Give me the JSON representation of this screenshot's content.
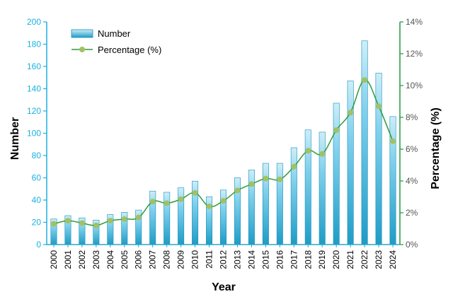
{
  "chart_data": {
    "type": "bar+line",
    "title": "",
    "xlabel": "Year",
    "ylabel_left": "Number",
    "ylabel_right": "Percentage (%)",
    "ylim_left": [
      0,
      200
    ],
    "ylim_right": [
      0,
      14
    ],
    "yticks_left": [
      "0",
      "20",
      "40",
      "60",
      "80",
      "100",
      "120",
      "140",
      "160",
      "180",
      "200"
    ],
    "yticks_right": [
      "0%",
      "2%",
      "4%",
      "6%",
      "8%",
      "10%",
      "12%",
      "14%"
    ],
    "categories": [
      "2000",
      "2001",
      "2002",
      "2003",
      "2004",
      "2005",
      "2006",
      "2007",
      "2008",
      "2009",
      "2010",
      "2011",
      "2012",
      "2013",
      "2014",
      "2015",
      "2016",
      "2017",
      "2018",
      "2019",
      "2020",
      "2021",
      "2022",
      "2023",
      "2024"
    ],
    "legend_position": "top-left",
    "grid": false,
    "series": [
      {
        "name": "Number",
        "type": "bar",
        "axis": "left",
        "values": [
          23,
          26,
          24,
          22,
          27,
          29,
          31,
          48,
          47,
          51,
          57,
          43,
          49,
          60,
          67,
          73,
          73,
          87,
          103,
          101,
          127,
          147,
          183,
          154,
          115
        ]
      },
      {
        "name": "Percentage (%)",
        "type": "line",
        "axis": "right",
        "values": [
          1.3,
          1.5,
          1.35,
          1.2,
          1.5,
          1.6,
          1.7,
          2.7,
          2.6,
          2.85,
          3.25,
          2.4,
          2.75,
          3.4,
          3.8,
          4.15,
          4.1,
          4.9,
          5.9,
          5.7,
          7.2,
          8.3,
          10.35,
          8.7,
          6.5
        ]
      }
    ],
    "colors": {
      "bar_top": "#cdeef8",
      "bar_bottom": "#1e9cc6",
      "bar_stroke": "#1a8fbd",
      "line": "#2a9c3b",
      "marker": "#a3c163",
      "left_axis": "#1ab0e0",
      "right_axis": "#1f9a3e"
    }
  }
}
